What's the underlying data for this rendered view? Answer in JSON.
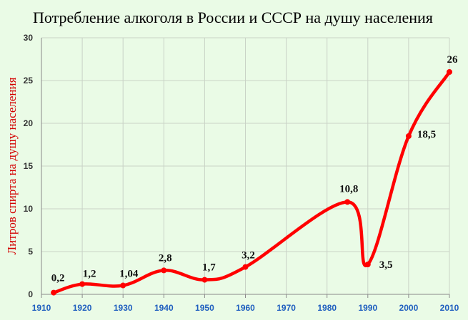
{
  "chart_data": {
    "type": "line",
    "title": "Потребление алкоголя в России и СССР на душу населения",
    "ylabel": "Литров спирта на душу  населения",
    "xlabel": "",
    "xlim": [
      1910,
      2010
    ],
    "ylim": [
      0,
      30
    ],
    "x_ticks": [
      "1910",
      "1920",
      "1930",
      "1940",
      "1950",
      "1960",
      "1970",
      "1980",
      "1990",
      "2000",
      "2010"
    ],
    "y_ticks": [
      "0",
      "5",
      "10",
      "15",
      "20",
      "25",
      "30"
    ],
    "grid": true,
    "legend": "none",
    "series": [
      {
        "color": "#ff0000",
        "points": [
          {
            "x": 1913,
            "y": 0.2,
            "label": "0,2"
          },
          {
            "x": 1920,
            "y": 1.2,
            "label": "1,2"
          },
          {
            "x": 1930,
            "y": 1.04,
            "label": "1,04"
          },
          {
            "x": 1940,
            "y": 2.8,
            "label": "2,8"
          },
          {
            "x": 1950,
            "y": 1.7,
            "label": "1,7"
          },
          {
            "x": 1960,
            "y": 3.2,
            "label": "3,2"
          },
          {
            "x": 1985,
            "y": 10.8,
            "label": "10,8"
          },
          {
            "x": 1990,
            "y": 3.5,
            "label": "3,5"
          },
          {
            "x": 2000,
            "y": 18.5,
            "label": "18,5"
          },
          {
            "x": 2010,
            "y": 26,
            "label": "26"
          }
        ]
      }
    ]
  }
}
